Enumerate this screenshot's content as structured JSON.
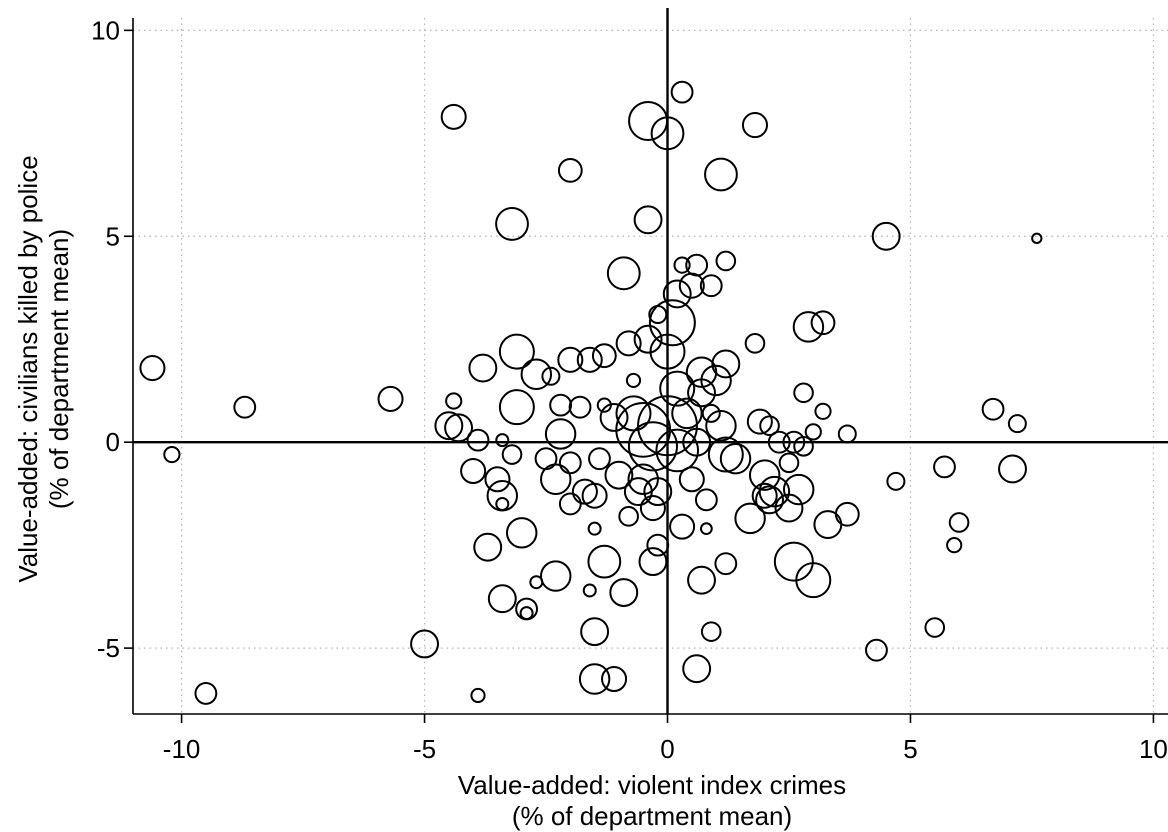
{
  "chart_data": {
    "type": "scatter",
    "variant": "bubble",
    "title": "",
    "xlabel_line1": "Value-added: violent index crimes",
    "xlabel_line2": "(% of department mean)",
    "ylabel_line1": "Value-added: civilians killed by police",
    "ylabel_line2": "(% of department mean)",
    "xlim": [
      -11,
      10.3
    ],
    "ylim": [
      -6.6,
      10.3
    ],
    "xticks": [
      -10,
      -5,
      0,
      5,
      10
    ],
    "yticks": [
      -5,
      0,
      5,
      10
    ],
    "xtick_labels": [
      "-10",
      "-5",
      "0",
      "5",
      "10"
    ],
    "ytick_labels": [
      "-5",
      "0",
      "5",
      "10"
    ],
    "grid": true,
    "reference_lines": {
      "x": 0,
      "y": 0
    },
    "marker_color": "#000000",
    "points": [
      {
        "x": -0.4,
        "y": 7.8,
        "w": 5
      },
      {
        "x": 0.3,
        "y": 8.5,
        "w": 1.5
      },
      {
        "x": 0.0,
        "y": 7.5,
        "w": 3.5
      },
      {
        "x": -4.4,
        "y": 7.9,
        "w": 2
      },
      {
        "x": 1.8,
        "y": 7.7,
        "w": 2
      },
      {
        "x": -2.0,
        "y": 6.6,
        "w": 1.8
      },
      {
        "x": 1.1,
        "y": 6.5,
        "w": 3.5
      },
      {
        "x": -3.2,
        "y": 5.3,
        "w": 3.5
      },
      {
        "x": -0.4,
        "y": 5.4,
        "w": 2.5
      },
      {
        "x": 4.5,
        "y": 5.0,
        "w": 2.5
      },
      {
        "x": 7.6,
        "y": 4.95,
        "w": 0.3
      },
      {
        "x": -0.9,
        "y": 4.1,
        "w": 3.5
      },
      {
        "x": 0.3,
        "y": 4.3,
        "w": 0.8
      },
      {
        "x": 0.6,
        "y": 4.3,
        "w": 1.5
      },
      {
        "x": 1.2,
        "y": 4.4,
        "w": 1.2
      },
      {
        "x": 0.2,
        "y": 3.6,
        "w": 2.5
      },
      {
        "x": 0.5,
        "y": 3.8,
        "w": 2
      },
      {
        "x": 0.9,
        "y": 3.8,
        "w": 1.5
      },
      {
        "x": 0.1,
        "y": 2.9,
        "w": 7
      },
      {
        "x": -0.2,
        "y": 3.1,
        "w": 1
      },
      {
        "x": 0.0,
        "y": 2.2,
        "w": 4
      },
      {
        "x": -0.4,
        "y": 2.5,
        "w": 2.5
      },
      {
        "x": -0.8,
        "y": 2.4,
        "w": 2
      },
      {
        "x": -1.3,
        "y": 2.1,
        "w": 1.8
      },
      {
        "x": -1.6,
        "y": 2.0,
        "w": 2
      },
      {
        "x": -2.0,
        "y": 2.0,
        "w": 2
      },
      {
        "x": -3.1,
        "y": 2.2,
        "w": 4
      },
      {
        "x": -3.8,
        "y": 1.8,
        "w": 2.5
      },
      {
        "x": -2.7,
        "y": 1.65,
        "w": 3
      },
      {
        "x": -2.4,
        "y": 1.6,
        "w": 1
      },
      {
        "x": -10.6,
        "y": 1.8,
        "w": 2
      },
      {
        "x": 2.9,
        "y": 2.8,
        "w": 3
      },
      {
        "x": 3.2,
        "y": 2.9,
        "w": 1.8
      },
      {
        "x": 1.8,
        "y": 2.4,
        "w": 1.2
      },
      {
        "x": 0.7,
        "y": 1.7,
        "w": 3
      },
      {
        "x": 1.0,
        "y": 1.5,
        "w": 3
      },
      {
        "x": 1.2,
        "y": 1.9,
        "w": 2.5
      },
      {
        "x": 0.2,
        "y": 1.3,
        "w": 4
      },
      {
        "x": -0.7,
        "y": 1.5,
        "w": 0.6
      },
      {
        "x": -8.7,
        "y": 0.85,
        "w": 1.5
      },
      {
        "x": -5.7,
        "y": 1.05,
        "w": 2
      },
      {
        "x": -4.4,
        "y": 1.0,
        "w": 0.8
      },
      {
        "x": -3.1,
        "y": 0.85,
        "w": 4
      },
      {
        "x": -2.2,
        "y": 0.9,
        "w": 1.5
      },
      {
        "x": -1.8,
        "y": 0.85,
        "w": 1.5
      },
      {
        "x": -1.3,
        "y": 0.9,
        "w": 0.6
      },
      {
        "x": -4.5,
        "y": 0.4,
        "w": 2.5
      },
      {
        "x": -4.3,
        "y": 0.35,
        "w": 2.5
      },
      {
        "x": -3.9,
        "y": 0.05,
        "w": 1.5
      },
      {
        "x": -3.4,
        "y": 0.05,
        "w": 0.5
      },
      {
        "x": -2.2,
        "y": 0.2,
        "w": 3
      },
      {
        "x": -0.5,
        "y": 0.3,
        "w": 10
      },
      {
        "x": 0.0,
        "y": 0.4,
        "w": 12
      },
      {
        "x": -0.3,
        "y": -0.1,
        "w": 8
      },
      {
        "x": 0.2,
        "y": -0.2,
        "w": 6
      },
      {
        "x": -0.7,
        "y": 0.7,
        "w": 4
      },
      {
        "x": 0.4,
        "y": 0.7,
        "w": 3
      },
      {
        "x": -1.1,
        "y": 0.6,
        "w": 2.5
      },
      {
        "x": 1.1,
        "y": 0.4,
        "w": 3
      },
      {
        "x": 1.2,
        "y": -0.3,
        "w": 4
      },
      {
        "x": 1.4,
        "y": -0.4,
        "w": 3
      },
      {
        "x": 0.6,
        "y": 0.0,
        "w": 2.5
      },
      {
        "x": 0.9,
        "y": 0.7,
        "w": 1
      },
      {
        "x": 0.7,
        "y": 1.2,
        "w": 2.5
      },
      {
        "x": 2.8,
        "y": 1.2,
        "w": 1.2
      },
      {
        "x": 1.9,
        "y": 0.5,
        "w": 2
      },
      {
        "x": 2.1,
        "y": 0.4,
        "w": 1.2
      },
      {
        "x": 3.2,
        "y": 0.75,
        "w": 0.8
      },
      {
        "x": 2.3,
        "y": 0.0,
        "w": 1.5
      },
      {
        "x": 2.6,
        "y": 0.0,
        "w": 1.5
      },
      {
        "x": 2.8,
        "y": -0.1,
        "w": 1.2
      },
      {
        "x": 3.0,
        "y": 0.25,
        "w": 0.8
      },
      {
        "x": 3.7,
        "y": 0.2,
        "w": 1
      },
      {
        "x": 6.7,
        "y": 0.8,
        "w": 1.5
      },
      {
        "x": 7.2,
        "y": 0.45,
        "w": 1
      },
      {
        "x": -10.2,
        "y": -0.3,
        "w": 0.8
      },
      {
        "x": -4.0,
        "y": -0.7,
        "w": 2
      },
      {
        "x": -3.2,
        "y": -0.3,
        "w": 1.2
      },
      {
        "x": -2.5,
        "y": -0.4,
        "w": 1.5
      },
      {
        "x": -2.0,
        "y": -0.5,
        "w": 1.5
      },
      {
        "x": -1.4,
        "y": -0.4,
        "w": 1.5
      },
      {
        "x": -1.0,
        "y": -0.8,
        "w": 2.5
      },
      {
        "x": -0.5,
        "y": -0.9,
        "w": 3
      },
      {
        "x": -0.2,
        "y": -1.2,
        "w": 2.5
      },
      {
        "x": -0.6,
        "y": -1.2,
        "w": 2.5
      },
      {
        "x": -0.8,
        "y": -1.8,
        "w": 1.2
      },
      {
        "x": -0.3,
        "y": -1.6,
        "w": 2
      },
      {
        "x": -2.3,
        "y": -0.9,
        "w": 3
      },
      {
        "x": -3.5,
        "y": -0.9,
        "w": 2
      },
      {
        "x": -3.4,
        "y": -1.3,
        "w": 3
      },
      {
        "x": -3.4,
        "y": -1.5,
        "w": 0.5
      },
      {
        "x": -1.7,
        "y": -1.2,
        "w": 2
      },
      {
        "x": -1.5,
        "y": -1.3,
        "w": 2
      },
      {
        "x": -2.0,
        "y": -1.5,
        "w": 1.5
      },
      {
        "x": -1.5,
        "y": -2.1,
        "w": 0.5
      },
      {
        "x": 0.8,
        "y": -1.4,
        "w": 1.5
      },
      {
        "x": 0.5,
        "y": -0.9,
        "w": 2
      },
      {
        "x": 1.7,
        "y": -1.85,
        "w": 3
      },
      {
        "x": 2.0,
        "y": -1.3,
        "w": 2
      },
      {
        "x": 2.2,
        "y": -1.2,
        "w": 3
      },
      {
        "x": 2.1,
        "y": -1.4,
        "w": 2.5
      },
      {
        "x": 2.5,
        "y": -1.6,
        "w": 2.5
      },
      {
        "x": 2.7,
        "y": -1.15,
        "w": 3
      },
      {
        "x": 2.0,
        "y": -0.8,
        "w": 3
      },
      {
        "x": 2.5,
        "y": -0.5,
        "w": 1.2
      },
      {
        "x": 3.3,
        "y": -2.0,
        "w": 2.5
      },
      {
        "x": 3.7,
        "y": -1.75,
        "w": 1.8
      },
      {
        "x": 4.7,
        "y": -0.95,
        "w": 1
      },
      {
        "x": 5.7,
        "y": -0.6,
        "w": 1.5
      },
      {
        "x": 7.1,
        "y": -0.65,
        "w": 2.5
      },
      {
        "x": 6.0,
        "y": -1.95,
        "w": 1.2
      },
      {
        "x": 5.9,
        "y": -2.5,
        "w": 0.7
      },
      {
        "x": 0.3,
        "y": -2.05,
        "w": 2
      },
      {
        "x": 0.8,
        "y": -2.1,
        "w": 0.4
      },
      {
        "x": -3.0,
        "y": -2.2,
        "w": 3
      },
      {
        "x": -3.7,
        "y": -2.55,
        "w": 2.5
      },
      {
        "x": -0.2,
        "y": -2.5,
        "w": 1.5
      },
      {
        "x": -1.3,
        "y": -2.9,
        "w": 3.5
      },
      {
        "x": -0.3,
        "y": -2.9,
        "w": 2.5
      },
      {
        "x": 1.2,
        "y": -2.95,
        "w": 1.5
      },
      {
        "x": 2.6,
        "y": -2.9,
        "w": 5
      },
      {
        "x": 3.0,
        "y": -3.35,
        "w": 4
      },
      {
        "x": 0.7,
        "y": -3.35,
        "w": 2.5
      },
      {
        "x": -2.3,
        "y": -3.25,
        "w": 3
      },
      {
        "x": -2.7,
        "y": -3.4,
        "w": 0.5
      },
      {
        "x": -1.6,
        "y": -3.6,
        "w": 0.5
      },
      {
        "x": -0.9,
        "y": -3.65,
        "w": 2.5
      },
      {
        "x": -3.4,
        "y": -3.8,
        "w": 2.5
      },
      {
        "x": -2.9,
        "y": -4.05,
        "w": 1.5
      },
      {
        "x": -2.9,
        "y": -4.15,
        "w": 0.5
      },
      {
        "x": -1.5,
        "y": -4.6,
        "w": 2.5
      },
      {
        "x": 0.9,
        "y": -4.6,
        "w": 1.2
      },
      {
        "x": 5.5,
        "y": -4.5,
        "w": 1.2
      },
      {
        "x": -5.0,
        "y": -4.9,
        "w": 2.5
      },
      {
        "x": 4.3,
        "y": -5.05,
        "w": 1.5
      },
      {
        "x": 0.6,
        "y": -5.5,
        "w": 2.5
      },
      {
        "x": -1.5,
        "y": -5.75,
        "w": 3
      },
      {
        "x": -1.1,
        "y": -5.75,
        "w": 2
      },
      {
        "x": -9.5,
        "y": -6.1,
        "w": 1.5
      },
      {
        "x": -3.9,
        "y": -6.15,
        "w": 0.6
      }
    ]
  }
}
